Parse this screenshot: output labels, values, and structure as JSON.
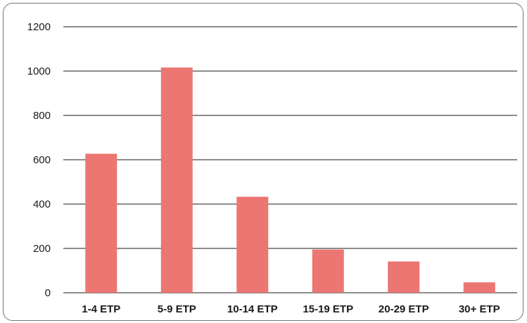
{
  "chart_data": {
    "type": "bar",
    "categories": [
      "1-4 ETP",
      "5-9 ETP",
      "10-14 ETP",
      "15-19 ETP",
      "20-29 ETP",
      "30+ ETP"
    ],
    "values": [
      627,
      1016,
      433,
      195,
      141,
      47
    ],
    "title": "",
    "xlabel": "",
    "ylabel": "",
    "ylim": [
      0,
      1200
    ],
    "yticks": [
      0,
      200,
      400,
      600,
      800,
      1000,
      1200
    ],
    "grid": true,
    "legend": "none",
    "bar_color": "#ec7672",
    "grid_color": "#1a1a1a"
  }
}
